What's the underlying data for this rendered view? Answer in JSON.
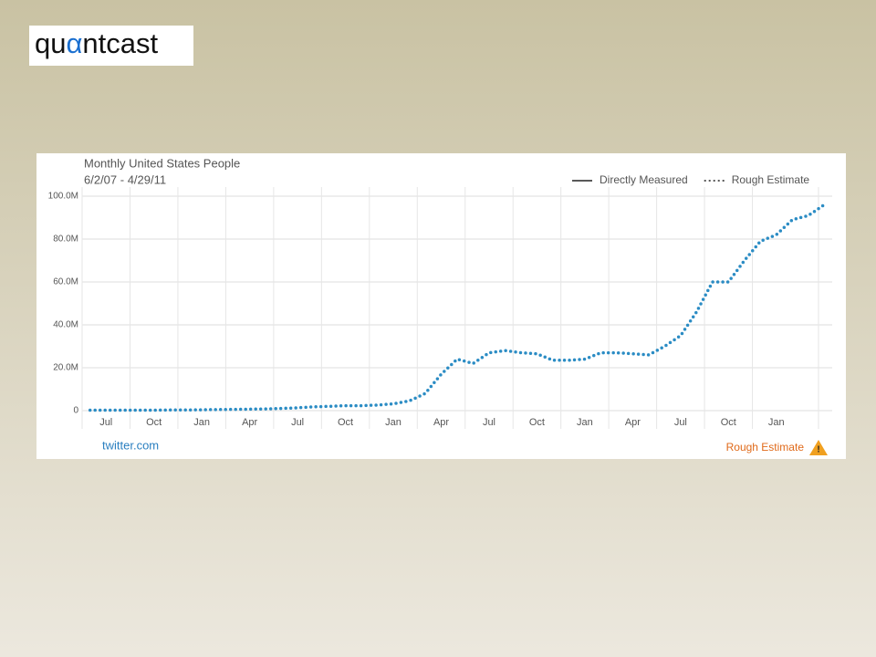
{
  "logo": {
    "prefix": "qu",
    "mark": "α",
    "suffix": "ntcast"
  },
  "chart_data": {
    "type": "line",
    "title": "Monthly United States People",
    "subtitle": "6/2/07 - 4/29/11",
    "legend_items": [
      {
        "label": "Directly Measured",
        "style": "solid"
      },
      {
        "label": "Rough Estimate",
        "style": "dotted"
      }
    ],
    "site": "twitter.com",
    "badge": "Rough Estimate",
    "categories": [
      null,
      "Jul",
      null,
      null,
      "Oct",
      null,
      null,
      "Jan",
      null,
      null,
      "Apr",
      null,
      null,
      "Jul",
      null,
      null,
      "Oct",
      null,
      null,
      "Jan",
      null,
      null,
      "Apr",
      null,
      null,
      "Jul",
      null,
      null,
      "Oct",
      null,
      null,
      "Jan",
      null,
      null,
      "Apr",
      null,
      null,
      "Jul",
      null,
      null,
      "Oct",
      null,
      null,
      "Jan",
      null,
      null,
      null
    ],
    "series": [
      {
        "color": "#2b8cc4",
        "values": [
          200000,
          200000,
          200000,
          200000,
          200000,
          300000,
          300000,
          400000,
          500000,
          600000,
          700000,
          800000,
          1000000,
          1300000,
          1800000,
          2000000,
          2300000,
          2300000,
          2600000,
          3200000,
          4500000,
          8000000,
          17000000,
          24000000,
          22000000,
          27000000,
          28000000,
          27000000,
          26500000,
          23500000,
          23500000,
          24000000,
          27000000,
          27000000,
          26500000,
          26000000,
          30000000,
          35000000,
          46000000,
          60000000,
          60000000,
          70000000,
          79000000,
          82000000,
          89000000,
          91000000,
          96000000
        ]
      }
    ],
    "ylim": [
      0,
      100000000
    ],
    "yticks": [
      0,
      {
        "value": 20000000,
        "label": "20.0M"
      },
      {
        "value": 40000000,
        "label": "40.0M"
      },
      {
        "value": 60000000,
        "label": "60.0M"
      },
      {
        "value": 80000000,
        "label": "80.0M"
      },
      {
        "value": 100000000,
        "label": "100.0M"
      }
    ],
    "grid": true
  }
}
